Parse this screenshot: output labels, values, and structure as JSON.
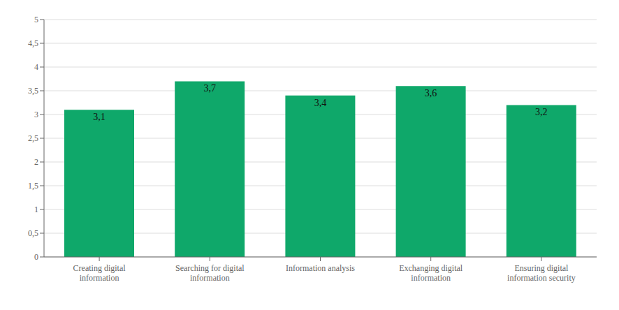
{
  "chart_data": {
    "type": "bar",
    "categories": [
      "Creating digital\ninformation",
      "Searching for digital\ninformation",
      "Information analysis",
      "Exchanging digital\ninformation",
      "Ensuring digital\ninformation security"
    ],
    "values": [
      3.1,
      3.7,
      3.4,
      3.6,
      3.2
    ],
    "value_labels": [
      "3,1",
      "3,7",
      "3,4",
      "3,6",
      "3,2"
    ],
    "data_labels": true,
    "color": "#0fa86a",
    "ylim": [
      0,
      5
    ],
    "yticks": [
      0,
      {
        "value": 0.5,
        "label": "0,5"
      },
      1,
      {
        "value": 1.5,
        "label": "1,5"
      },
      2,
      {
        "value": 2.5,
        "label": "2,5"
      },
      3,
      {
        "value": 3.5,
        "label": "3,5"
      },
      4,
      {
        "value": 4.5,
        "label": "4,5"
      },
      5
    ],
    "grid": true
  }
}
